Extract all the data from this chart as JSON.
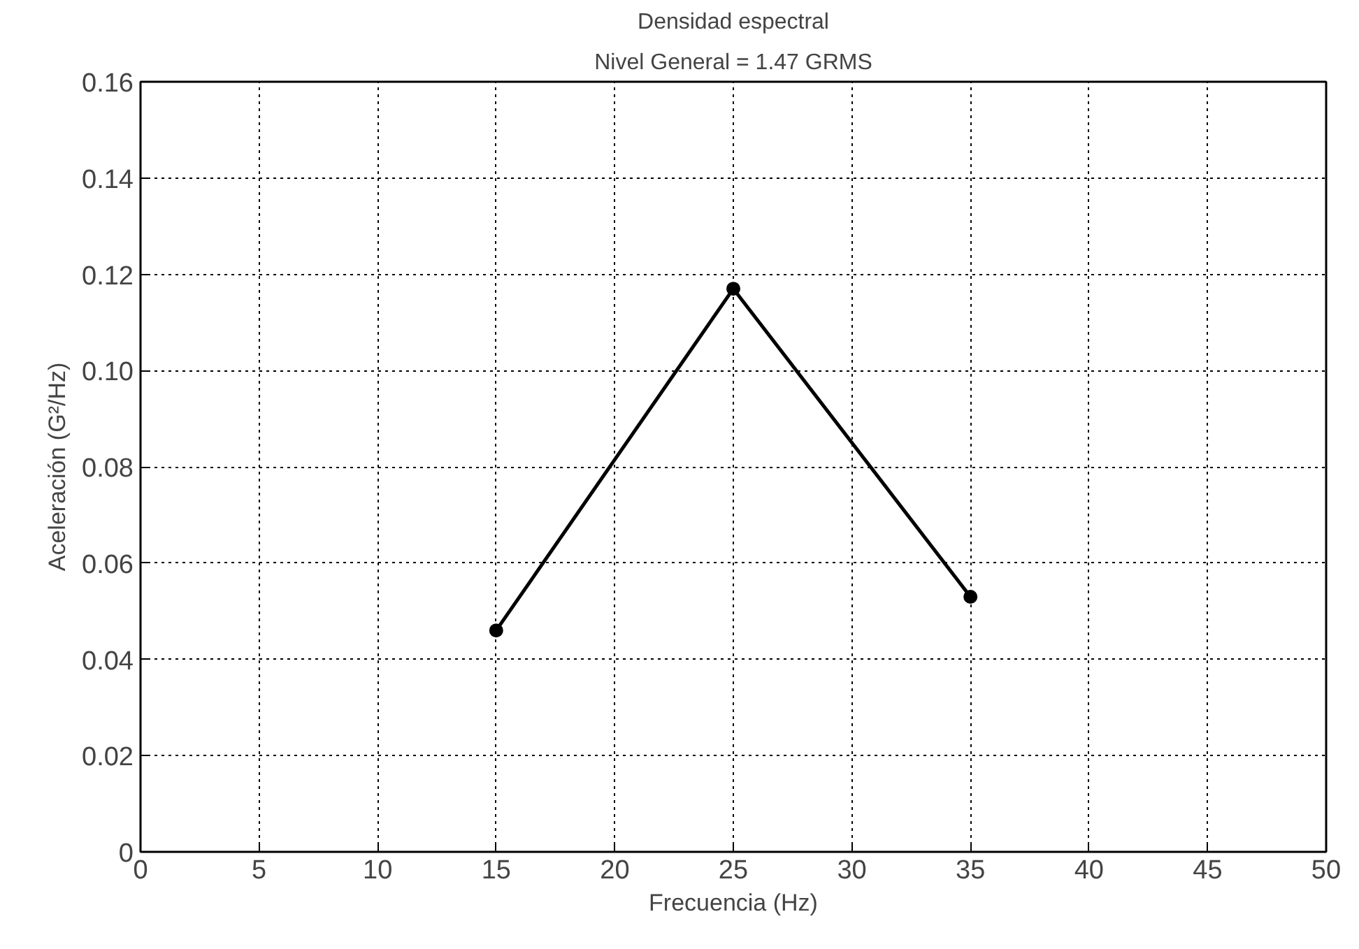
{
  "chart_data": {
    "type": "line",
    "title": "Densidad espectral",
    "subtitle": "Nivel General = 1.47 GRMS",
    "xlabel": "Frecuencia (Hz)",
    "ylabel": "Aceleración (G²/Hz)",
    "x": [
      15,
      25,
      35
    ],
    "series": [
      {
        "color": "#000000",
        "values": [
          0.046,
          0.117,
          0.053
        ]
      }
    ],
    "xlim": [
      0,
      50
    ],
    "xticks": [
      0,
      5,
      10,
      15,
      20,
      25,
      30,
      35,
      40,
      45,
      50
    ],
    "ylim": [
      0,
      0.16
    ],
    "yticks": [
      {
        "value": 0,
        "label": "0"
      },
      {
        "value": 0.02,
        "label": "0.02"
      },
      {
        "value": 0.04,
        "label": "0.04"
      },
      {
        "value": 0.06,
        "label": "0.06"
      },
      {
        "value": 0.08,
        "label": "0.08"
      },
      {
        "value": 0.1,
        "label": "0.10"
      },
      {
        "value": 0.12,
        "label": "0.12"
      },
      {
        "value": 0.14,
        "label": "0.14"
      },
      {
        "value": 0.16,
        "label": "0.16"
      }
    ],
    "grid": true,
    "marker": "circle",
    "line_style": "solid"
  }
}
